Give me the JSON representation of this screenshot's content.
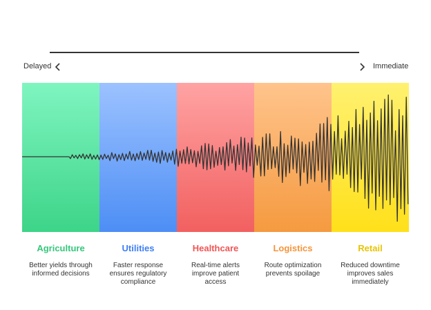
{
  "axis": {
    "left_label": "Delayed",
    "right_label": "Immediate",
    "left_icon": "chevron-left-icon",
    "right_icon": "chevron-right-icon"
  },
  "sectors": [
    {
      "name": "Agriculture",
      "description": "Better yields through informed decisions",
      "title_color": "#34c77b",
      "color_top": "#7ff5c0",
      "color_bottom": "#3dd488"
    },
    {
      "name": "Utilities",
      "description": "Faster response ensures regulatory compliance",
      "title_color": "#3d7ef5",
      "color_top": "#9cc2ff",
      "color_bottom": "#4d8ef5"
    },
    {
      "name": "Healthcare",
      "description": "Real-time alerts improve patient access",
      "title_color": "#f05454",
      "color_top": "#ffa3a3",
      "color_bottom": "#f26060"
    },
    {
      "name": "Logistics",
      "description": "Route optimization prevents spoilage",
      "title_color": "#f5943a",
      "color_top": "#ffc48c",
      "color_bottom": "#f59a40"
    },
    {
      "name": "Retail",
      "description": "Reduced downtime improves sales immediately",
      "title_color": "#e8c400",
      "color_top": "#fff170",
      "color_bottom": "#ffe01a"
    }
  ],
  "signal_color": "#333333"
}
